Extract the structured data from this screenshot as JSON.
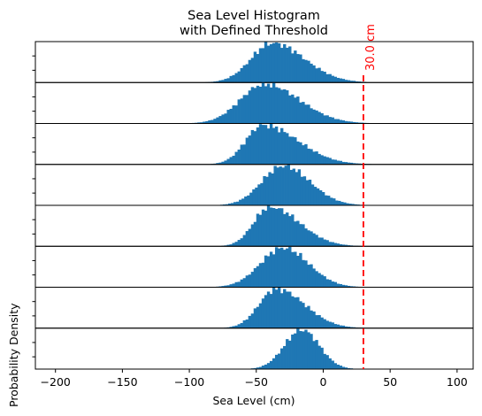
{
  "chart_data": {
    "type": "histogram",
    "title": [
      "Sea Level Histogram",
      "with Defined Threshold"
    ],
    "xlabel": "Sea Level (cm)",
    "ylabel": "Probability Density",
    "xlim": [
      -215,
      112
    ],
    "xticks": [
      -200,
      -150,
      -100,
      -50,
      0,
      50,
      100
    ],
    "xtick_labels": [
      "−200",
      "−150",
      "−100",
      "−50",
      "0",
      "50",
      "100"
    ],
    "threshold": {
      "value": 30,
      "label": "30.0 cm",
      "color": "#ff0000"
    },
    "bar_color": "#1f77b4",
    "panel_count": 8,
    "panels": [
      {
        "panel": 1,
        "peak_at": -38,
        "spread_left": 16,
        "spread_right": 24,
        "range": [
          -98,
          32
        ]
      },
      {
        "panel": 2,
        "peak_at": -44,
        "spread_left": 18,
        "spread_right": 26,
        "range": [
          -106,
          50
        ]
      },
      {
        "panel": 3,
        "peak_at": -45,
        "spread_left": 13,
        "spread_right": 26,
        "range": [
          -86,
          46
        ]
      },
      {
        "panel": 4,
        "peak_at": -30,
        "spread_left": 16,
        "spread_right": 20,
        "range": [
          -91,
          38
        ]
      },
      {
        "panel": 5,
        "peak_at": -40,
        "spread_left": 12,
        "spread_right": 22,
        "range": [
          -80,
          36
        ]
      },
      {
        "panel": 6,
        "peak_at": -30,
        "spread_left": 17,
        "spread_right": 19,
        "range": [
          -88,
          32
        ]
      },
      {
        "panel": 7,
        "peak_at": -35,
        "spread_left": 13,
        "spread_right": 21,
        "range": [
          -86,
          42
        ]
      },
      {
        "panel": 8,
        "peak_at": -16,
        "spread_left": 13,
        "spread_right": 13,
        "range": [
          -62,
          32
        ]
      }
    ]
  }
}
